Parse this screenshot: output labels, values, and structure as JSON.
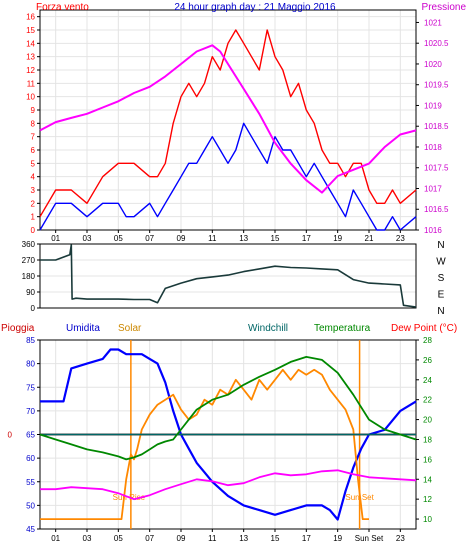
{
  "chart_data": [
    {
      "type": "line",
      "title": "24 hour graph day : 21 Maggio 2016",
      "left_axis_label": "Forza vento",
      "right_axis_label": "Pressione",
      "left_ticks": [
        "0",
        "1",
        "2",
        "3",
        "4",
        "5",
        "6",
        "7",
        "8",
        "9",
        "10",
        "11",
        "12",
        "13",
        "14",
        "15",
        "16"
      ],
      "left_ylim": [
        0,
        16.5
      ],
      "right_ticks": [
        "1016",
        "1016.5",
        "1017",
        "1017.5",
        "1018",
        "1018.5",
        "1019",
        "1019.5",
        "1020",
        "1020.5",
        "1021"
      ],
      "right_ylim": [
        1016,
        1021.3
      ],
      "x_ticks": [
        "01",
        "03",
        "05",
        "07",
        "09",
        "11",
        "13",
        "15",
        "17",
        "19",
        "21",
        "23"
      ],
      "xlim": [
        0,
        24
      ],
      "series": [
        {
          "name": "Forza vento",
          "axis": "left",
          "color": "#ff0000",
          "x": [
            0,
            1,
            2,
            3,
            4,
            5,
            6,
            7,
            7.5,
            8,
            8.5,
            9,
            9.5,
            10,
            10.5,
            11,
            11.5,
            12,
            12.5,
            13,
            13.5,
            14,
            14.5,
            15,
            15.5,
            16,
            16.5,
            17,
            17.5,
            18,
            18.5,
            19,
            19.5,
            20,
            20.5,
            21,
            21.5,
            22,
            22.5,
            23,
            24
          ],
          "values": [
            1,
            3,
            3,
            2,
            4,
            5,
            5,
            4,
            4,
            5,
            8,
            10,
            11,
            10,
            11,
            13,
            12,
            14,
            15,
            14,
            13,
            12,
            15,
            13,
            12,
            10,
            11,
            9,
            8,
            6,
            5,
            5,
            4,
            5,
            5,
            3,
            2,
            2,
            3,
            2,
            3
          ]
        },
        {
          "name": "Raffica",
          "axis": "left",
          "color": "#0000ff",
          "x": [
            0,
            1,
            2,
            3,
            4,
            5,
            5.5,
            6,
            7,
            7.5,
            8,
            8.5,
            9,
            9.5,
            10,
            10.5,
            11,
            11.5,
            12,
            12.5,
            13,
            13.5,
            14,
            14.5,
            15,
            15.5,
            16,
            16.5,
            17,
            17.5,
            18,
            18.5,
            19,
            19.5,
            20,
            20.5,
            21,
            21.5,
            22,
            22.5,
            23,
            24
          ],
          "values": [
            0,
            2,
            2,
            1,
            2,
            2,
            1,
            1,
            2,
            1,
            2,
            3,
            4,
            5,
            5,
            6,
            7,
            6,
            5,
            6,
            8,
            7,
            6,
            5,
            7,
            6,
            6,
            5,
            4,
            5,
            4,
            3,
            2,
            1,
            3,
            2,
            1,
            0,
            0,
            1,
            0,
            1
          ]
        },
        {
          "name": "Pressione",
          "axis": "right",
          "color": "#ff00ff",
          "x": [
            0,
            1,
            2,
            3,
            4,
            5,
            6,
            7,
            8,
            9,
            10,
            11,
            11.5,
            12,
            13,
            14,
            15,
            16,
            17,
            18,
            19,
            20,
            21,
            22,
            23,
            24
          ],
          "values": [
            1018.4,
            1018.6,
            1018.7,
            1018.8,
            1018.95,
            1019.1,
            1019.3,
            1019.45,
            1019.7,
            1020.0,
            1020.3,
            1020.45,
            1020.3,
            1020.0,
            1019.4,
            1018.8,
            1018.1,
            1017.6,
            1017.2,
            1016.9,
            1017.3,
            1017.45,
            1017.6,
            1018.0,
            1018.3,
            1018.4
          ]
        }
      ]
    },
    {
      "type": "line",
      "left_ticks": [
        "0",
        "90",
        "180",
        "270",
        "360"
      ],
      "ylim": [
        0,
        360
      ],
      "right_labels": [
        "N",
        "W",
        "S",
        "E",
        "N"
      ],
      "x_ticks": [],
      "xlim": [
        0,
        24
      ],
      "series": [
        {
          "name": "Direzione vento",
          "color": "#1a3a3a",
          "x": [
            0,
            1,
            1.9,
            2,
            2.05,
            2.3,
            3,
            4,
            5,
            6,
            7,
            7.5,
            8,
            9,
            10,
            11,
            12,
            13,
            14,
            15,
            16,
            17,
            18,
            19,
            20,
            21,
            22,
            23,
            23.2,
            24
          ],
          "values": [
            270,
            270,
            300,
            355,
            50,
            55,
            50,
            50,
            50,
            48,
            48,
            30,
            110,
            140,
            165,
            175,
            185,
            205,
            220,
            235,
            228,
            225,
            220,
            215,
            160,
            140,
            135,
            130,
            15,
            5
          ]
        }
      ]
    },
    {
      "type": "line",
      "legend": [
        "Pioggia",
        "Umidita",
        "Solar",
        "Windchill",
        "Temperatura",
        "Dew Point (°C)"
      ],
      "left_ticks": [
        "45",
        "50",
        "55",
        "60",
        "65",
        "70",
        "75",
        "80",
        "85"
      ],
      "left_ylim": [
        45,
        85
      ],
      "right_ticks": [
        "10",
        "12",
        "14",
        "16",
        "18",
        "20",
        "22",
        "24",
        "26",
        "28"
      ],
      "right_ylim": [
        9,
        28
      ],
      "zero_label": "0",
      "x_ticks": [
        "01",
        "03",
        "05",
        "07",
        "09",
        "11",
        "13",
        "15",
        "17",
        "19",
        "Sun Set",
        "23"
      ],
      "xlim": [
        0,
        24
      ],
      "annotations": [
        {
          "label": "Sun Rise",
          "x": 5.8
        },
        {
          "label": "Sun Set",
          "x": 20.4
        }
      ],
      "series": [
        {
          "name": "Pioggia",
          "axis": "left",
          "color": "#cc0000",
          "x": [
            0,
            24
          ],
          "values": [
            65,
            65
          ]
        },
        {
          "name": "Umidita",
          "axis": "left",
          "color": "#0000ff",
          "x": [
            0,
            1,
            1.5,
            2,
            3,
            4,
            4.5,
            5,
            5.5,
            6,
            6.5,
            7,
            7.5,
            8,
            8.5,
            9,
            9.5,
            10,
            10.5,
            11,
            12,
            13,
            14,
            15,
            16,
            17,
            18,
            18.5,
            19,
            19.5,
            20,
            20.5,
            21,
            22,
            23,
            24
          ],
          "values": [
            72,
            72,
            72,
            79,
            80,
            81,
            83,
            83,
            82,
            82,
            82,
            81,
            80,
            76,
            70,
            65,
            62,
            59,
            57,
            55,
            52,
            50,
            49,
            48,
            49,
            50,
            50,
            49,
            47,
            53,
            58,
            62,
            65,
            66,
            70,
            72
          ]
        },
        {
          "name": "Solar",
          "axis": "right",
          "color": "#ff8800",
          "x": [
            0,
            5.2,
            5.5,
            5.8,
            6,
            6.2,
            6.5,
            7,
            7.5,
            8,
            8.5,
            9,
            9.5,
            10,
            10.5,
            11,
            11.5,
            12,
            12.5,
            13,
            13.5,
            14,
            14.5,
            15,
            15.5,
            16,
            16.5,
            17,
            17.5,
            18,
            18.5,
            19,
            19.5,
            20,
            20.3,
            20.6,
            21
          ],
          "values": [
            10,
            10,
            14,
            16.5,
            16,
            17,
            19,
            20.5,
            21.5,
            22,
            22.5,
            21,
            20,
            20.5,
            22,
            21.5,
            23,
            22.5,
            24,
            23,
            22,
            24,
            23,
            24,
            25,
            24,
            25,
            24.5,
            25,
            24.5,
            23,
            22,
            21,
            19,
            14,
            10,
            10
          ]
        },
        {
          "name": "Windchill",
          "axis": "right",
          "color": "#006666",
          "x": [
            0,
            24
          ],
          "values": [
            18.5,
            18.5
          ]
        },
        {
          "name": "Temperatura",
          "axis": "right",
          "color": "#008800",
          "x": [
            0,
            1,
            2,
            3,
            4,
            5,
            5.5,
            6,
            6.5,
            7,
            7.5,
            8,
            8.5,
            9,
            9.5,
            10,
            11,
            12,
            13,
            14,
            15,
            16,
            17,
            18,
            19,
            20,
            21,
            22,
            23,
            24
          ],
          "values": [
            18.5,
            18,
            17.5,
            17,
            16.7,
            16.3,
            16,
            16.2,
            16.5,
            17,
            17.5,
            17.8,
            18,
            19,
            20,
            21,
            22,
            22.5,
            23.5,
            24.3,
            25,
            25.8,
            26.3,
            26,
            24.7,
            22.5,
            20,
            19,
            18.5,
            18
          ]
        },
        {
          "name": "Dew Point (°C)",
          "axis": "right",
          "color": "#ff00ff",
          "x": [
            0,
            1,
            2,
            3,
            4,
            5,
            6,
            7,
            8,
            9,
            10,
            11,
            12,
            13,
            14,
            15,
            16,
            17,
            18,
            19,
            20,
            21,
            22,
            23,
            24
          ],
          "values": [
            13,
            13,
            13.2,
            13.1,
            13,
            12.6,
            12,
            12.4,
            13,
            13.5,
            14,
            13.8,
            13.4,
            13.6,
            14.2,
            14.6,
            14.4,
            14.5,
            14.8,
            14.9,
            14.5,
            14.2,
            14.1,
            14,
            13.9
          ]
        }
      ]
    }
  ]
}
